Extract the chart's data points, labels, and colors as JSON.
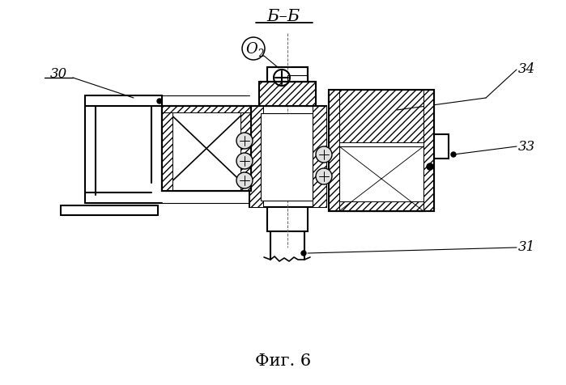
{
  "title": "Б–Б",
  "fig_label": "Фиг. 6",
  "bg_color": "#ffffff",
  "line_color": "#000000"
}
